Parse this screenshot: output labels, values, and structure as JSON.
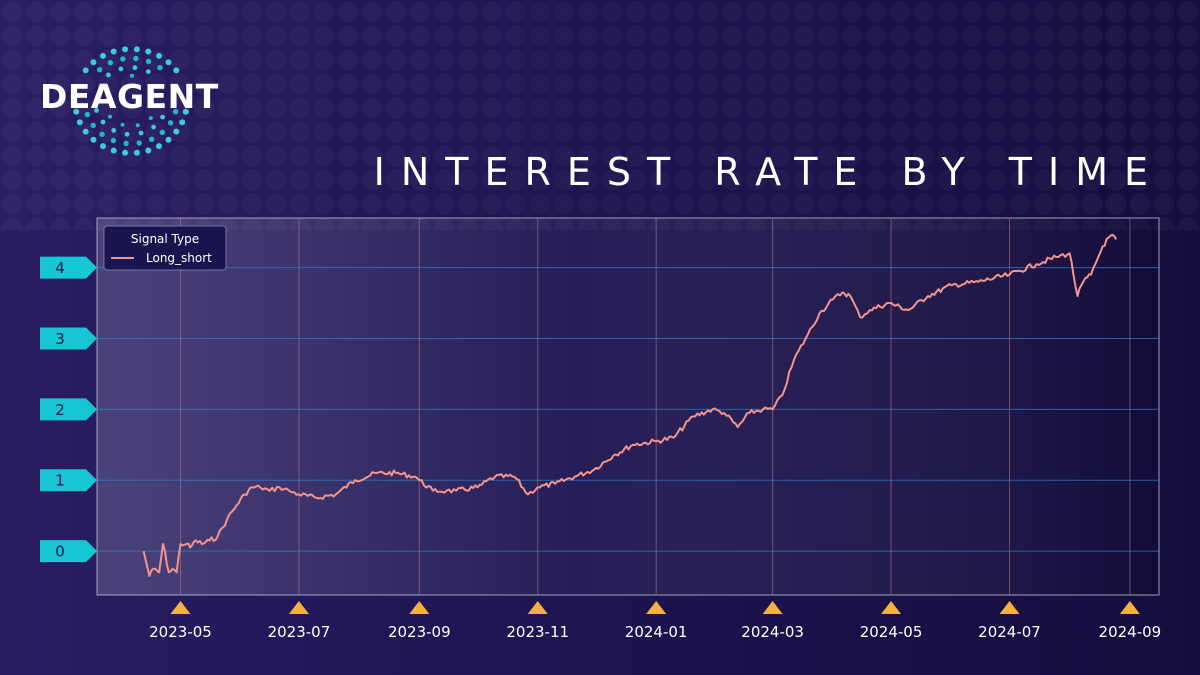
{
  "brand": {
    "name": "DEAGENT",
    "logo_icon": "dotted-halo-icon"
  },
  "colors": {
    "background_left": "#2a1d63",
    "background_right": "#150d3e",
    "line": "#f3948c",
    "accent_cyan": "#17c6d3",
    "x_marker": "#f6b03f"
  },
  "chart_data": {
    "type": "line",
    "title": "INTEREST RATE BY TIME",
    "xlabel": "",
    "ylabel": "",
    "grid": true,
    "legend_position": "top-left",
    "legend": {
      "title": "Signal Type"
    },
    "y_ticks": [
      0,
      1,
      2,
      3,
      4
    ],
    "x_ticks": [
      "2023-05",
      "2023-07",
      "2023-09",
      "2023-11",
      "2024-01",
      "2024-03",
      "2024-05",
      "2024-07",
      "2024-09"
    ],
    "x_range": [
      "2023-03-19",
      "2024-09-16"
    ],
    "ylim": [
      -0.62,
      4.7
    ],
    "series": [
      {
        "name": "Long_short",
        "color": "#f3948c",
        "x": [
          "2023-04-12",
          "2023-04-15",
          "2023-04-17",
          "2023-04-20",
          "2023-04-22",
          "2023-04-25",
          "2023-04-27",
          "2023-04-29",
          "2023-05-01",
          "2023-05-04",
          "2023-05-06",
          "2023-05-09",
          "2023-05-12",
          "2023-05-16",
          "2023-05-20",
          "2023-05-25",
          "2023-05-30",
          "2023-06-03",
          "2023-06-07",
          "2023-06-11",
          "2023-06-16",
          "2023-06-21",
          "2023-06-26",
          "2023-07-01",
          "2023-07-10",
          "2023-07-20",
          "2023-07-30",
          "2023-08-10",
          "2023-08-20",
          "2023-08-30",
          "2023-09-01",
          "2023-09-08",
          "2023-09-15",
          "2023-09-20",
          "2023-10-01",
          "2023-10-10",
          "2023-10-20",
          "2023-10-27",
          "2023-11-01",
          "2023-11-10",
          "2023-11-20",
          "2023-11-30",
          "2023-12-10",
          "2023-12-20",
          "2024-01-01",
          "2024-01-10",
          "2024-01-20",
          "2024-01-30",
          "2024-02-05",
          "2024-02-12",
          "2024-02-18",
          "2024-02-25",
          "2024-03-01",
          "2024-03-06",
          "2024-03-12",
          "2024-03-18",
          "2024-03-25",
          "2024-04-01",
          "2024-04-06",
          "2024-04-10",
          "2024-04-15",
          "2024-04-20",
          "2024-04-30",
          "2024-05-10",
          "2024-05-20",
          "2024-06-01",
          "2024-06-15",
          "2024-07-01",
          "2024-07-15",
          "2024-07-25",
          "2024-08-01",
          "2024-08-05",
          "2024-08-08",
          "2024-08-12",
          "2024-08-18",
          "2024-08-22",
          "2024-08-25"
        ],
        "values": [
          0.0,
          -0.35,
          -0.25,
          -0.3,
          0.1,
          -0.3,
          -0.25,
          -0.3,
          0.1,
          0.1,
          0.05,
          0.15,
          0.1,
          0.15,
          0.2,
          0.45,
          0.65,
          0.8,
          0.9,
          0.9,
          0.85,
          0.9,
          0.85,
          0.8,
          0.75,
          0.8,
          1.0,
          1.1,
          1.1,
          1.05,
          1.0,
          0.85,
          0.85,
          0.85,
          0.9,
          1.05,
          1.05,
          0.8,
          0.9,
          0.95,
          1.05,
          1.15,
          1.35,
          1.5,
          1.55,
          1.6,
          1.9,
          2.0,
          1.95,
          1.75,
          1.95,
          2.0,
          2.0,
          2.2,
          2.7,
          3.0,
          3.35,
          3.55,
          3.65,
          3.6,
          3.3,
          3.4,
          3.5,
          3.4,
          3.6,
          3.75,
          3.8,
          3.9,
          4.05,
          4.15,
          4.2,
          3.6,
          3.8,
          3.9,
          4.3,
          4.45,
          4.4
        ]
      }
    ]
  }
}
